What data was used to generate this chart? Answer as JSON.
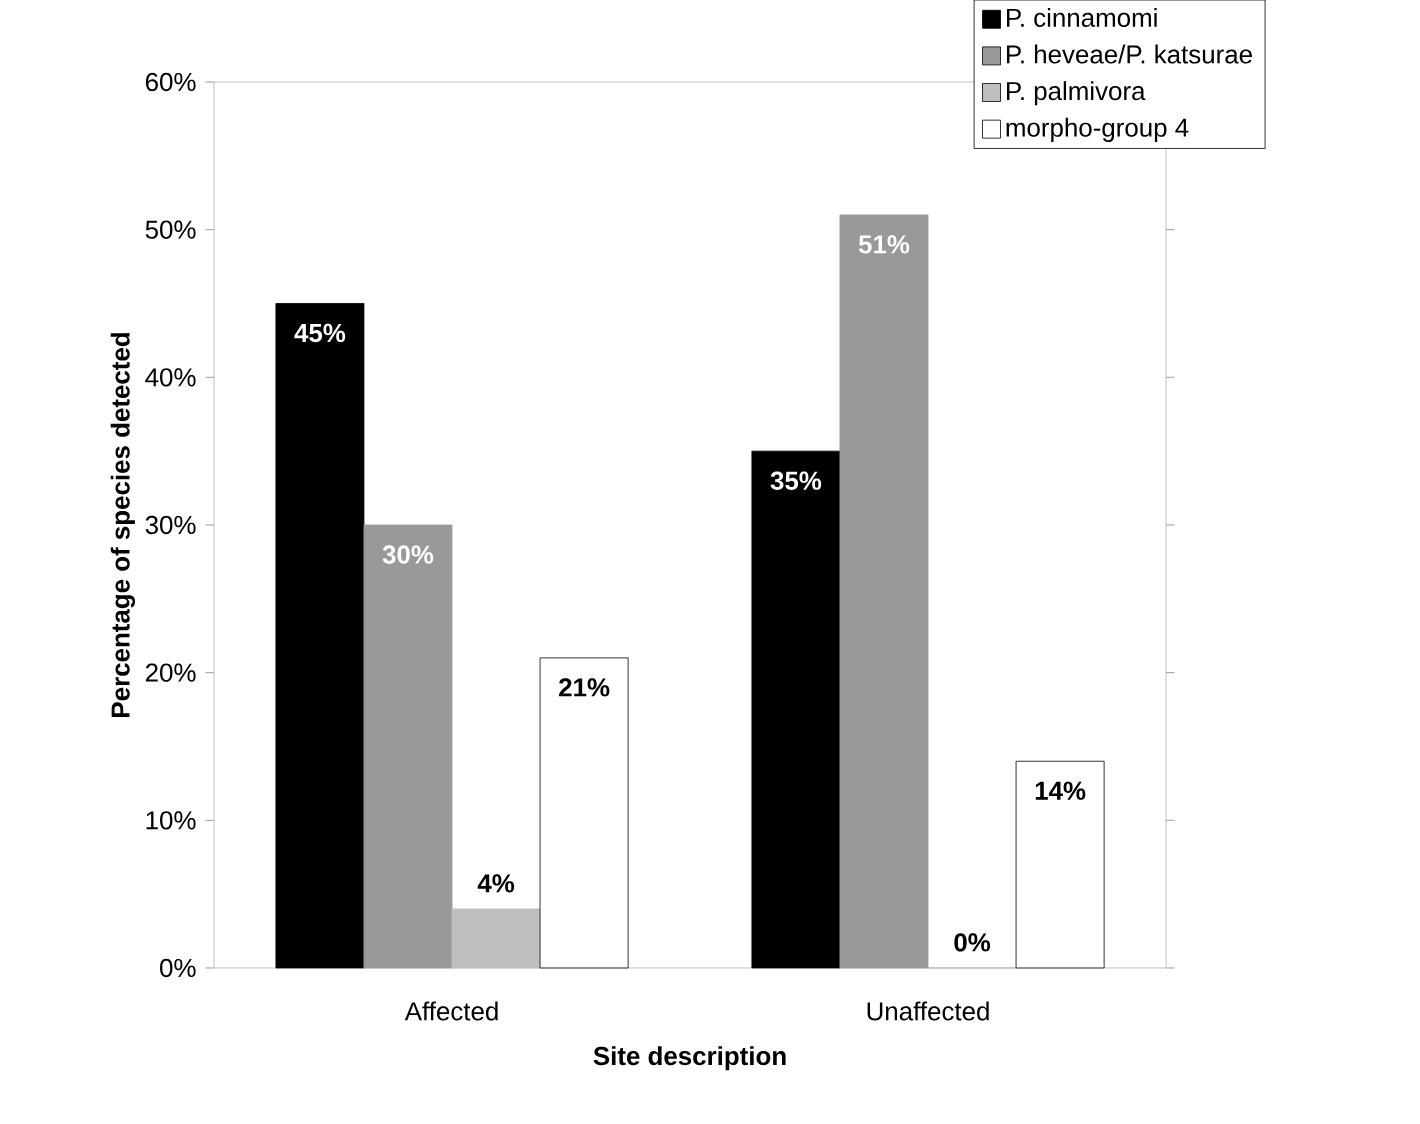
{
  "chart_data": {
    "type": "bar",
    "xlabel": "Site description",
    "ylabel": "Percentage of species detected",
    "categories": [
      "Affected",
      "Unaffected"
    ],
    "series": [
      {
        "name": "P. cinnamomi",
        "color": "#000000",
        "values": [
          45,
          35
        ],
        "value_labels": [
          "45%",
          "35%"
        ]
      },
      {
        "name": "P. heveae/P. katsurae",
        "color": "#999999",
        "values": [
          30,
          51
        ],
        "value_labels": [
          "30%",
          "51%"
        ]
      },
      {
        "name": "P. palmivora",
        "color": "#bfbfbf",
        "values": [
          4,
          0
        ],
        "value_labels": [
          "4%",
          "0%"
        ]
      },
      {
        "name": "morpho-group 4",
        "color": "#ffffff",
        "values": [
          21,
          14
        ],
        "value_labels": [
          "21%",
          "14%"
        ]
      }
    ],
    "ylim": [
      0,
      60
    ],
    "yticks": [
      {
        "value": 0,
        "label": "0%"
      },
      {
        "value": 10,
        "label": "10%"
      },
      {
        "value": 20,
        "label": "20%"
      },
      {
        "value": 30,
        "label": "30%"
      },
      {
        "value": 40,
        "label": "40%"
      },
      {
        "value": 50,
        "label": "50%"
      },
      {
        "value": 60,
        "label": "60%"
      }
    ],
    "legend": "top right"
  }
}
